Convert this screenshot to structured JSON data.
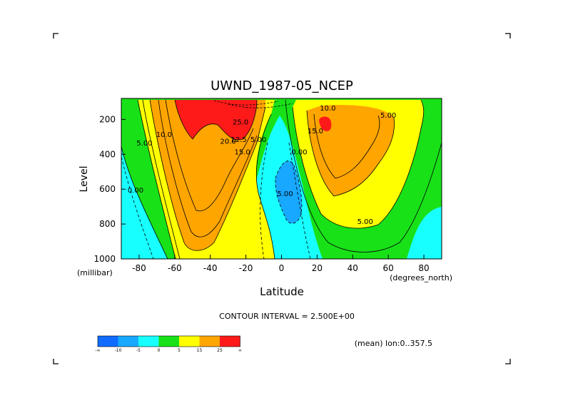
{
  "chart_data": {
    "type": "contour",
    "title": "UWND_1987-05_NCEP",
    "xlabel": "Latitude",
    "ylabel": "Level",
    "x_units": "(degrees_north)",
    "y_units": "(millibar)",
    "xlim": [
      -90,
      90
    ],
    "ylim": [
      1000,
      80
    ],
    "y_inverted": true,
    "x_ticks": [
      "-80",
      "-60",
      "-40",
      "-20",
      "0",
      "20",
      "40",
      "60",
      "80"
    ],
    "x_tick_values": [
      -80,
      -60,
      -40,
      -20,
      0,
      20,
      40,
      60,
      80
    ],
    "y_ticks": [
      "200",
      "400",
      "600",
      "800",
      "1000"
    ],
    "y_tick_values": [
      200,
      400,
      600,
      800,
      1000
    ],
    "contour_interval_text": "CONTOUR INTERVAL = 2.500E+00",
    "mean_text": "(mean) lon:0..357.5",
    "contour_labels": [
      {
        "text": "10.0",
        "x": -66,
        "y": 300
      },
      {
        "text": "5.00",
        "x": -77,
        "y": 350
      },
      {
        "text": "0.00",
        "x": -82,
        "y": 620
      },
      {
        "text": "25.0",
        "x": -23,
        "y": 230
      },
      {
        "text": "20.0",
        "x": -30,
        "y": 340
      },
      {
        "text": "15.0",
        "x": -22,
        "y": 400
      },
      {
        "text": "12.5",
        "x": -24,
        "y": 330
      },
      {
        "text": "5.00",
        "x": -13,
        "y": 330
      },
      {
        "text": "0.00",
        "x": 10,
        "y": 400
      },
      {
        "text": "5.00",
        "x": 2,
        "y": 640
      },
      {
        "text": "10.0",
        "x": 26,
        "y": 150
      },
      {
        "text": "5.00",
        "x": 60,
        "y": 190
      },
      {
        "text": "15.0",
        "x": 19,
        "y": 280
      },
      {
        "text": "5.00",
        "x": 47,
        "y": 800
      }
    ],
    "colorbar": {
      "colors": [
        "#0f6cff",
        "#18a8ff",
        "#18ffff",
        "#18e118",
        "#ffff00",
        "#ffa500",
        "#ff1a1a"
      ],
      "labels": [
        "-∞",
        "-10",
        "-5",
        "0",
        "5",
        "15",
        "25",
        "∞"
      ]
    }
  }
}
